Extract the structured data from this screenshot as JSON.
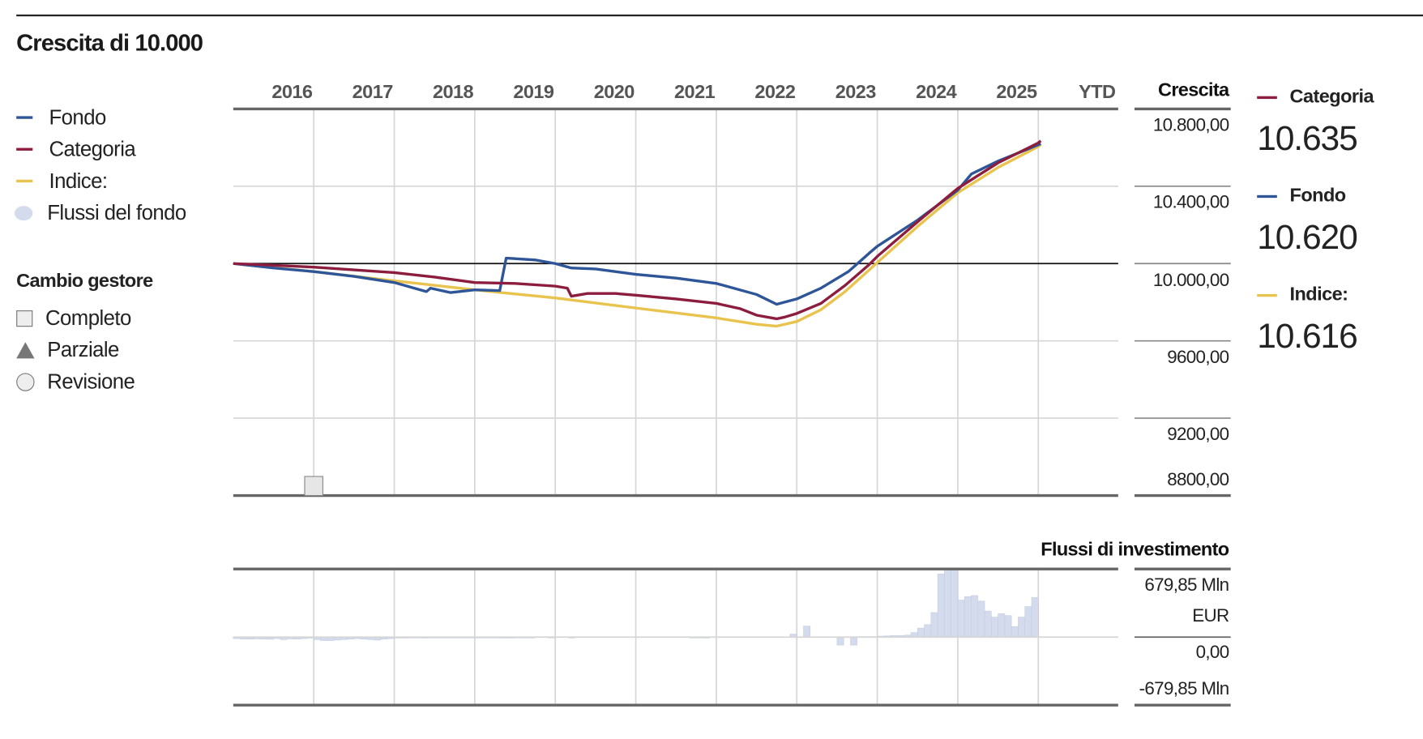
{
  "title": "Crescita di 10.000",
  "legend": {
    "items": [
      {
        "label": "Fondo",
        "color": "#2d5597"
      },
      {
        "label": "Categoria",
        "color": "#8c1d3e"
      },
      {
        "label": "Indice:",
        "color": "#e8c34e"
      },
      {
        "label": "Flussi del fondo",
        "color": "#d3dbec"
      }
    ],
    "manager_change": {
      "title": "Cambio gestore",
      "items": [
        {
          "label": "Completo",
          "icon": "square-icon"
        },
        {
          "label": "Parziale",
          "icon": "triangle-icon"
        },
        {
          "label": "Revisione",
          "icon": "circle-icon"
        }
      ]
    }
  },
  "summary": [
    {
      "label": "Categoria",
      "value": "10.635",
      "color": "#8c1d3e"
    },
    {
      "label": "Fondo",
      "value": "10.620",
      "color": "#2d5597"
    },
    {
      "label": "Indice:",
      "value": "10.616",
      "color": "#e8c34e"
    }
  ],
  "chart_data": [
    {
      "type": "line",
      "title": "Crescita",
      "x_labels": [
        "2016",
        "2017",
        "2018",
        "2019",
        "2020",
        "2021",
        "2022",
        "2023",
        "2024",
        "2025",
        "YTD"
      ],
      "y_tick_labels": [
        "10.800,00",
        "10.400,00",
        "10.000,00",
        "9600,00",
        "9200,00",
        "8800,00"
      ],
      "y_ticks": [
        10800,
        10400,
        10000,
        9600,
        9200,
        8800
      ],
      "ylim": [
        8800,
        10800
      ],
      "xlim": [
        2016,
        2027
      ],
      "reference_line": 10000,
      "grid": true,
      "manager_change_markers": [
        {
          "x": 2017.0,
          "type": "Completo"
        }
      ],
      "series": [
        {
          "name": "Fondo",
          "color": "#2d5597",
          "points": [
            [
              2016,
              10000
            ],
            [
              2016.5,
              9977
            ],
            [
              2017,
              9958
            ],
            [
              2017.5,
              9934
            ],
            [
              2018,
              9902
            ],
            [
              2018.4,
              9855
            ],
            [
              2018.45,
              9873
            ],
            [
              2018.7,
              9850
            ],
            [
              2019,
              9864
            ],
            [
              2019.31,
              9860
            ],
            [
              2019.39,
              10028
            ],
            [
              2019.75,
              10019
            ],
            [
              2020,
              10000
            ],
            [
              2020.2,
              9977
            ],
            [
              2020.5,
              9972
            ],
            [
              2021,
              9944
            ],
            [
              2021.5,
              9925
            ],
            [
              2022,
              9897
            ],
            [
              2022.5,
              9840
            ],
            [
              2022.75,
              9789
            ],
            [
              2023,
              9817
            ],
            [
              2023.3,
              9873
            ],
            [
              2023.64,
              9958
            ],
            [
              2023.92,
              10061
            ],
            [
              2024,
              10089
            ],
            [
              2024.5,
              10225
            ],
            [
              2025,
              10380
            ],
            [
              2025.17,
              10464
            ],
            [
              2025.5,
              10530
            ],
            [
              2026,
              10614
            ],
            [
              2026.03,
              10620
            ]
          ]
        },
        {
          "name": "Categoria",
          "color": "#8c1d3e",
          "points": [
            [
              2016,
              10000
            ],
            [
              2016.5,
              9991
            ],
            [
              2017,
              9981
            ],
            [
              2017.5,
              9967
            ],
            [
              2018,
              9953
            ],
            [
              2018.5,
              9930
            ],
            [
              2019,
              9902
            ],
            [
              2019.5,
              9897
            ],
            [
              2020,
              9883
            ],
            [
              2020.15,
              9873
            ],
            [
              2020.2,
              9831
            ],
            [
              2020.4,
              9845
            ],
            [
              2020.75,
              9845
            ],
            [
              2021,
              9836
            ],
            [
              2021.5,
              9817
            ],
            [
              2022,
              9794
            ],
            [
              2022.3,
              9766
            ],
            [
              2022.5,
              9733
            ],
            [
              2022.75,
              9714
            ],
            [
              2022.85,
              9723
            ],
            [
              2023,
              9742
            ],
            [
              2023.3,
              9794
            ],
            [
              2023.6,
              9887
            ],
            [
              2023.9,
              9995
            ],
            [
              2024,
              10037
            ],
            [
              2024.5,
              10216
            ],
            [
              2025,
              10389
            ],
            [
              2025.5,
              10521
            ],
            [
              2026,
              10624
            ],
            [
              2026.03,
              10635
            ]
          ]
        },
        {
          "name": "Indice:",
          "color": "#e8c34e",
          "points": [
            [
              2016,
              10000
            ],
            [
              2017,
              9958
            ],
            [
              2018,
              9911
            ],
            [
              2019,
              9864
            ],
            [
              2020,
              9822
            ],
            [
              2021,
              9770
            ],
            [
              2022,
              9719
            ],
            [
              2022.5,
              9686
            ],
            [
              2022.75,
              9676
            ],
            [
              2023,
              9700
            ],
            [
              2023.3,
              9761
            ],
            [
              2023.6,
              9855
            ],
            [
              2023.9,
              9967
            ],
            [
              2024,
              10005
            ],
            [
              2024.5,
              10192
            ],
            [
              2025,
              10366
            ],
            [
              2025.5,
              10497
            ],
            [
              2026,
              10605
            ],
            [
              2026.03,
              10616
            ]
          ]
        }
      ]
    },
    {
      "type": "bar",
      "title": "Flussi di investimento",
      "y_tick_labels": [
        "679,85 Mln",
        "EUR",
        "0,00",
        "-679,85 Mln"
      ],
      "ylim": [
        -679.85,
        679.85
      ],
      "x_start": 2016,
      "interval": "monthly",
      "color": "#d3dbec",
      "values": [
        -15,
        -20,
        -20,
        -18,
        -20,
        -22,
        -15,
        -25,
        -18,
        -20,
        -15,
        -10,
        -25,
        -35,
        -35,
        -30,
        -25,
        -20,
        -15,
        -20,
        -25,
        -30,
        -20,
        -15,
        -10,
        -10,
        -8,
        -8,
        -10,
        -5,
        -5,
        -5,
        -5,
        -3,
        -3,
        -3,
        -2,
        -2,
        -2,
        -2,
        -10,
        -10,
        -2,
        -2,
        -5,
        0,
        0,
        -3,
        0,
        0,
        -2,
        0,
        0,
        0,
        0,
        0,
        0,
        0,
        0,
        0,
        0,
        0,
        0,
        0,
        0,
        0,
        0,
        0,
        -5,
        -8,
        -10,
        0,
        0,
        0,
        0,
        0,
        0,
        0,
        0,
        0,
        0,
        0,
        0,
        30,
        0,
        110,
        0,
        0,
        0,
        0,
        -80,
        0,
        -80,
        5,
        5,
        5,
        10,
        12,
        15,
        15,
        20,
        45,
        90,
        125,
        245,
        630,
        679.85,
        679.85,
        370,
        405,
        415,
        360,
        260,
        200,
        235,
        215,
        105,
        200,
        305,
        395
      ]
    }
  ]
}
